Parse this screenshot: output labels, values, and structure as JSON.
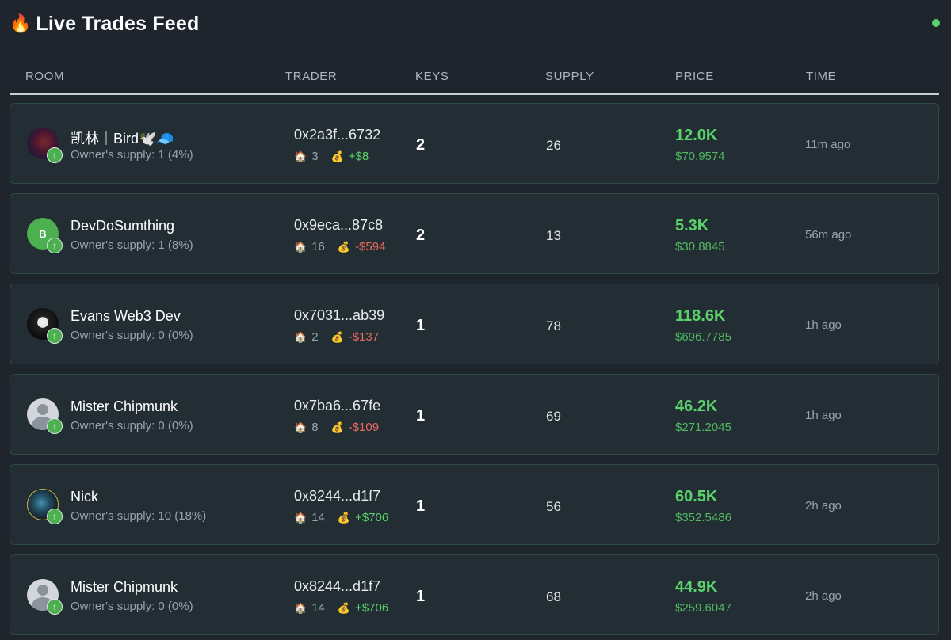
{
  "header": {
    "icon": "fire-icon",
    "title": "Live Trades Feed",
    "status_color": "#5bd36c"
  },
  "columns": {
    "room": "ROOM",
    "trader": "TRADER",
    "keys": "KEYS",
    "supply": "SUPPLY",
    "price": "PRICE",
    "time": "TIME"
  },
  "rows": [
    {
      "room_name": "凯林｜Bird🕊️🧢",
      "owner_supply": "Owner's supply: 1 (4%)",
      "avatar": "image",
      "trader_address": "0x2a3f...6732",
      "rooms_count": "3",
      "pnl": "+$8",
      "keys": "2",
      "supply": "26",
      "price": "12.0K",
      "price_usd": "$70.9574",
      "time": "11m ago"
    },
    {
      "room_name": "DevDoSumthing",
      "owner_supply": "Owner's supply: 1 (8%)",
      "avatar": "letter",
      "avatar_letter": "B",
      "trader_address": "0x9eca...87c8",
      "rooms_count": "16",
      "pnl": "-$594",
      "keys": "2",
      "supply": "13",
      "price": "5.3K",
      "price_usd": "$30.8845",
      "time": "56m ago"
    },
    {
      "room_name": "Evans Web3 Dev",
      "owner_supply": "Owner's supply: 0 (0%)",
      "avatar": "image",
      "trader_address": "0x7031...ab39",
      "rooms_count": "2",
      "pnl": "-$137",
      "keys": "1",
      "supply": "78",
      "price": "118.6K",
      "price_usd": "$696.7785",
      "time": "1h ago"
    },
    {
      "room_name": "Mister Chipmunk",
      "owner_supply": "Owner's supply: 0 (0%)",
      "avatar": "placeholder",
      "trader_address": "0x7ba6...67fe",
      "rooms_count": "8",
      "pnl": "-$109",
      "keys": "1",
      "supply": "69",
      "price": "46.2K",
      "price_usd": "$271.2045",
      "time": "1h ago"
    },
    {
      "room_name": "Nick",
      "owner_supply": "Owner's supply: 10 (18%)",
      "avatar": "image",
      "trader_address": "0x8244...d1f7",
      "rooms_count": "14",
      "pnl": "+$706",
      "keys": "1",
      "supply": "56",
      "price": "60.5K",
      "price_usd": "$352.5486",
      "time": "2h ago"
    },
    {
      "room_name": "Mister Chipmunk",
      "owner_supply": "Owner's supply: 0 (0%)",
      "avatar": "placeholder",
      "trader_address": "0x8244...d1f7",
      "rooms_count": "14",
      "pnl": "+$706",
      "keys": "1",
      "supply": "68",
      "price": "44.9K",
      "price_usd": "$259.6047",
      "time": "2h ago"
    }
  ],
  "colors": {
    "background": "#1f252d",
    "row_background": "#222e34",
    "row_border": "#2f4a41",
    "positive": "#5bd36c",
    "negative": "#e5695f",
    "muted": "#9aa3ab"
  }
}
